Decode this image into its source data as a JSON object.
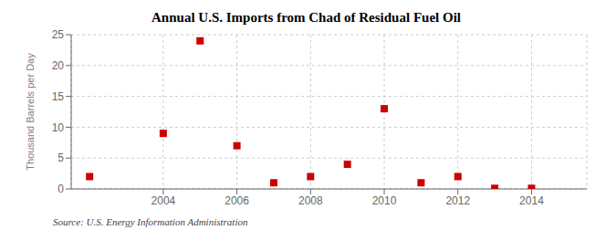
{
  "chart_data": {
    "type": "scatter",
    "title": "Annual U.S. Imports from Chad of Residual Fuel Oil",
    "ylabel": "Thousand Barrels per Day",
    "annotations": [
      "Source: U.S. Energy Information Administration"
    ],
    "x": [
      2002,
      2004,
      2005,
      2006,
      2007,
      2008,
      2009,
      2010,
      2011,
      2012,
      2013,
      2014
    ],
    "values": [
      2,
      9,
      24,
      7,
      1,
      2,
      4,
      13,
      1,
      2,
      0.1,
      0.1
    ],
    "color": "#cc0000",
    "marker": "square",
    "xlim": [
      2001.5,
      2015.5
    ],
    "ylim": [
      0,
      25
    ],
    "xticks": [
      2004,
      2006,
      2008,
      2010,
      2012,
      2014
    ],
    "yticks": [
      0,
      5,
      10,
      15,
      20,
      25
    ],
    "grid": true
  }
}
